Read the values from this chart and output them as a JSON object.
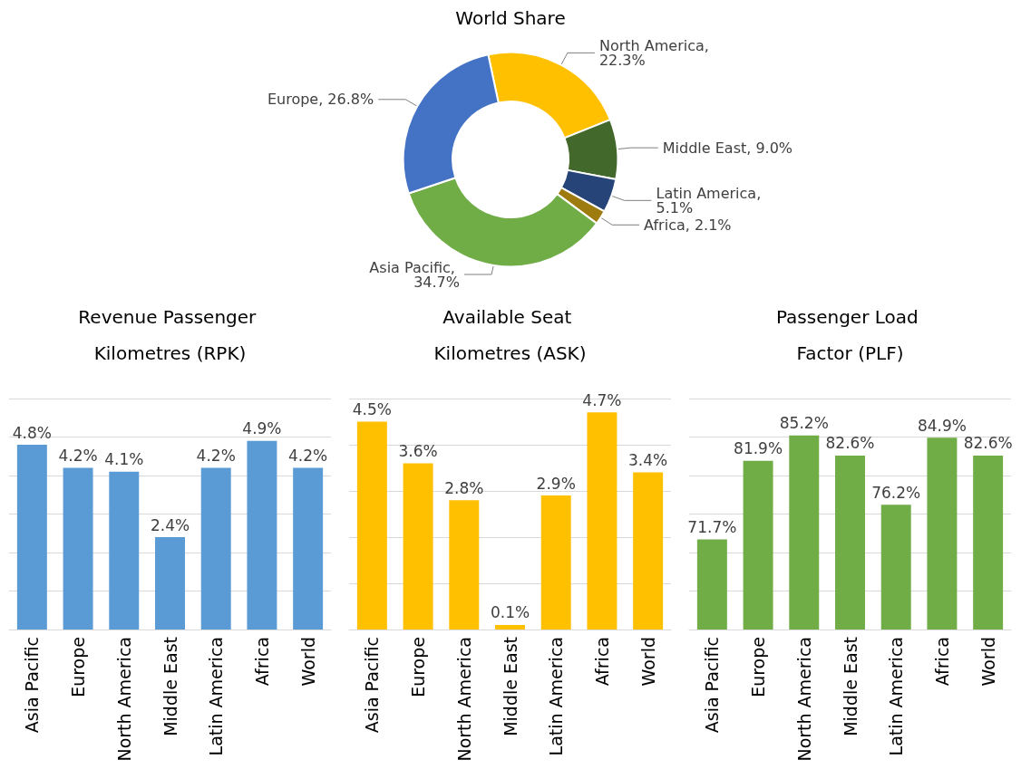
{
  "chart_data": [
    {
      "type": "donut",
      "title": "World Share",
      "categories": [
        "North America",
        "Middle East",
        "Latin America",
        "Africa",
        "Asia Pacific",
        "Europe"
      ],
      "values": [
        22.3,
        9.0,
        5.1,
        2.1,
        34.7,
        26.8
      ],
      "value_labels": [
        "North America, 22.3%",
        "Middle East, 9.0%",
        "Latin America, 5.1%",
        "Africa, 2.1%",
        "Asia Pacific, 34.7%",
        "Europe, 26.8%"
      ],
      "colors": [
        "#ffc000",
        "#43682b",
        "#264478",
        "#9e7b0f",
        "#70ad47",
        "#4472c4"
      ],
      "legend": false
    },
    {
      "type": "bar",
      "title": "Revenue Passenger Kilometres (RPK)",
      "categories": [
        "Asia Pacific",
        "Europe",
        "North America",
        "Middle East",
        "Latin America",
        "Africa",
        "World"
      ],
      "values": [
        4.8,
        4.2,
        4.1,
        2.4,
        4.2,
        4.9,
        4.2
      ],
      "value_labels": [
        "4.8%",
        "4.2%",
        "4.1%",
        "2.4%",
        "4.2%",
        "4.9%",
        "4.2%"
      ],
      "color": "#5b9bd5",
      "ylim": [
        0,
        6
      ],
      "yticks": [
        {
          "value": 0,
          "label": null
        },
        {
          "value": 1,
          "label": null
        },
        {
          "value": 2,
          "label": null
        },
        {
          "value": 3,
          "label": null
        },
        {
          "value": 4,
          "label": null
        },
        {
          "value": 5,
          "label": null
        },
        {
          "value": 6,
          "label": null
        }
      ],
      "grid": "y",
      "tick_labels": "x",
      "legend": false
    },
    {
      "type": "bar",
      "title": "Available Seat Kilometres (ASK)",
      "categories": [
        "Asia Pacific",
        "Europe",
        "North America",
        "Middle East",
        "Latin America",
        "Africa",
        "World"
      ],
      "values": [
        4.5,
        3.6,
        2.8,
        0.1,
        2.9,
        4.7,
        3.4
      ],
      "value_labels": [
        "4.5%",
        "3.6%",
        "2.8%",
        "0.1%",
        "2.9%",
        "4.7%",
        "3.4%"
      ],
      "color": "#ffc000",
      "ylim": [
        0,
        5
      ],
      "yticks": [
        {
          "value": 0,
          "label": null
        },
        {
          "value": 1,
          "label": null
        },
        {
          "value": 2,
          "label": null
        },
        {
          "value": 3,
          "label": null
        },
        {
          "value": 4,
          "label": null
        },
        {
          "value": 5,
          "label": null
        }
      ],
      "grid": "y",
      "tick_labels": "x",
      "legend": false
    },
    {
      "type": "bar",
      "title": "Passenger Load Factor (PLF)",
      "categories": [
        "Asia Pacific",
        "Europe",
        "North America",
        "Middle East",
        "Latin America",
        "Africa",
        "World"
      ],
      "values": [
        71.7,
        81.9,
        85.2,
        82.6,
        76.2,
        84.9,
        82.6
      ],
      "value_labels": [
        "71.7%",
        "81.9%",
        "85.2%",
        "82.6%",
        "76.2%",
        "84.9%",
        "82.6%"
      ],
      "color": "#70ad47",
      "ylim": [
        60,
        90
      ],
      "yticks": [
        {
          "value": 60,
          "label": null
        },
        {
          "value": 65,
          "label": null
        },
        {
          "value": 70,
          "label": null
        },
        {
          "value": 75,
          "label": null
        },
        {
          "value": 80,
          "label": null
        },
        {
          "value": 85,
          "label": null
        },
        {
          "value": 90,
          "label": null
        }
      ],
      "grid": "y",
      "tick_labels": "x",
      "legend": false
    }
  ]
}
